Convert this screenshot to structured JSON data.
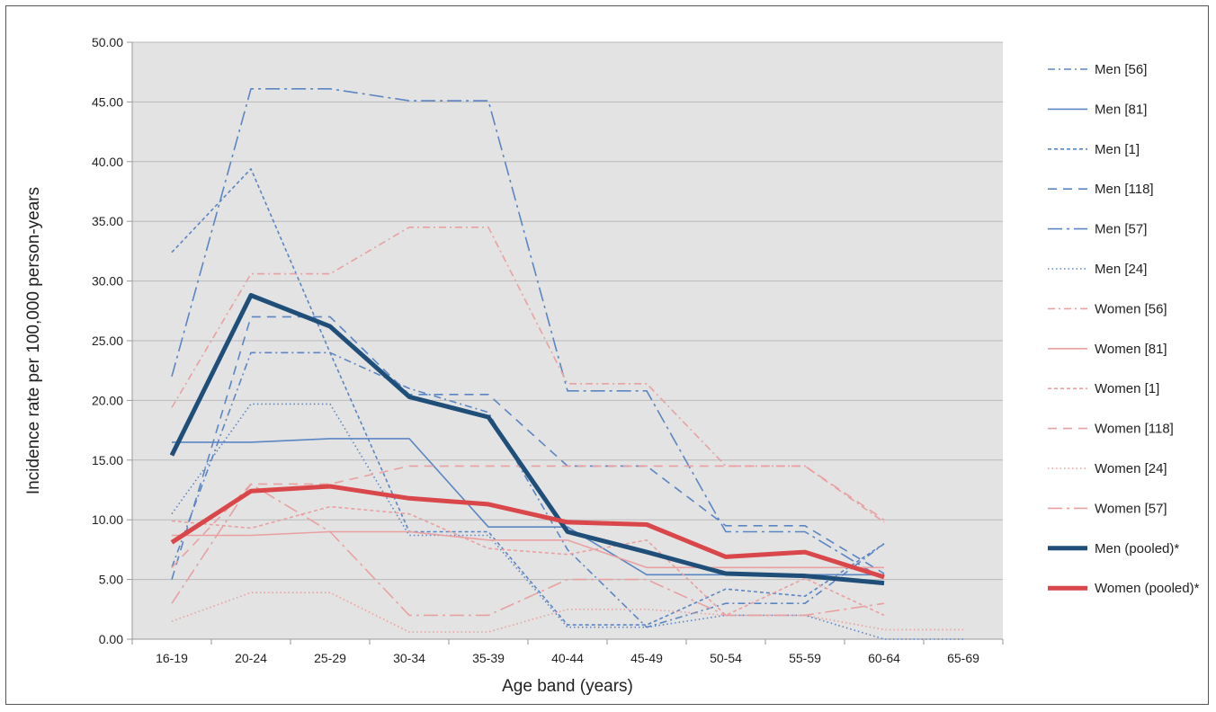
{
  "chart_data": {
    "type": "line",
    "title": "",
    "xlabel": "Age band (years)",
    "ylabel": "Incidence rate per 100,000 person-years",
    "ylim": [
      0,
      50
    ],
    "yticks": [
      "0.00",
      "5.00",
      "10.00",
      "15.00",
      "20.00",
      "25.00",
      "30.00",
      "35.00",
      "40.00",
      "45.00",
      "50.00"
    ],
    "categories": [
      "16-19",
      "20-24",
      "25-29",
      "30-34",
      "35-39",
      "40-44",
      "45-49",
      "50-54",
      "55-59",
      "60-64",
      "65-69"
    ],
    "grid": true,
    "legend_position": "right",
    "series": [
      {
        "name": "Men [56]",
        "color": "#5b86c4",
        "dash": "dashdot",
        "width": 1.6,
        "values": [
          6.0,
          24.0,
          24.0,
          21.0,
          19.0,
          7.5,
          1.0,
          3.0,
          3.0,
          8.0,
          null
        ]
      },
      {
        "name": "Men [81]",
        "color": "#5b86c4",
        "dash": "solid",
        "width": 1.6,
        "values": [
          16.5,
          16.5,
          16.8,
          16.8,
          9.4,
          9.4,
          5.4,
          5.4,
          5.4,
          5.4,
          null
        ]
      },
      {
        "name": "Men [1]",
        "color": "#5b86c4",
        "dash": "shortdash",
        "width": 1.6,
        "values": [
          32.4,
          39.4,
          24.0,
          9.0,
          9.0,
          1.2,
          1.2,
          4.2,
          3.6,
          8.0,
          null
        ]
      },
      {
        "name": "Men [118]",
        "color": "#5b86c4",
        "dash": "longdash",
        "width": 1.6,
        "values": [
          5.0,
          27.0,
          27.0,
          20.5,
          20.5,
          14.5,
          14.5,
          9.5,
          9.5,
          5.5,
          null
        ]
      },
      {
        "name": "Men [57]",
        "color": "#5b86c4",
        "dash": "longdashdot",
        "width": 1.6,
        "values": [
          22.0,
          46.1,
          46.1,
          45.1,
          45.1,
          20.8,
          20.8,
          9.0,
          9.0,
          5.0,
          null
        ]
      },
      {
        "name": "Men [24]",
        "color": "#5b86c4",
        "dash": "dot",
        "width": 1.6,
        "values": [
          10.5,
          19.7,
          19.7,
          8.7,
          8.7,
          1.0,
          1.0,
          2.0,
          2.0,
          0.0,
          0.0
        ]
      },
      {
        "name": "Women [56]",
        "color": "#eaa0a0",
        "dash": "dashdot",
        "width": 1.6,
        "values": [
          19.4,
          30.6,
          30.6,
          34.5,
          34.5,
          21.4,
          21.4,
          14.5,
          14.5,
          9.8,
          null
        ]
      },
      {
        "name": "Women [81]",
        "color": "#eaa0a0",
        "dash": "solid",
        "width": 1.6,
        "values": [
          8.7,
          8.7,
          9.0,
          9.0,
          8.3,
          8.3,
          6.0,
          6.0,
          6.0,
          6.0,
          null
        ]
      },
      {
        "name": "Women [1]",
        "color": "#eaa0a0",
        "dash": "shortdash",
        "width": 1.6,
        "values": [
          9.9,
          9.3,
          11.1,
          10.5,
          7.6,
          7.1,
          8.3,
          2.0,
          5.1,
          2.0,
          null
        ]
      },
      {
        "name": "Women [118]",
        "color": "#eaa0a0",
        "dash": "longdash",
        "width": 1.6,
        "values": [
          6.0,
          13.0,
          13.0,
          14.5,
          14.5,
          14.5,
          14.5,
          14.5,
          14.5,
          10.0,
          null
        ]
      },
      {
        "name": "Women [24]",
        "color": "#eaa0a0",
        "dash": "dot",
        "width": 1.6,
        "values": [
          1.5,
          3.9,
          3.9,
          0.6,
          0.6,
          2.5,
          2.5,
          2.0,
          2.0,
          0.8,
          0.8
        ]
      },
      {
        "name": "Women [57]",
        "color": "#eaa0a0",
        "dash": "longdashdot",
        "width": 1.6,
        "values": [
          3.0,
          13.0,
          9.0,
          2.0,
          2.0,
          5.0,
          5.0,
          2.0,
          2.0,
          3.0,
          null
        ]
      },
      {
        "name": "Men (pooled)*",
        "color": "#1f4e79",
        "dash": "solid",
        "width": 5,
        "values": [
          15.4,
          28.8,
          26.2,
          20.3,
          18.6,
          9.0,
          7.3,
          5.5,
          5.3,
          4.7,
          null
        ]
      },
      {
        "name": "Women (pooled)*",
        "color": "#d9474b",
        "dash": "solid",
        "width": 5,
        "values": [
          8.1,
          12.4,
          12.8,
          11.8,
          11.3,
          9.8,
          9.6,
          6.9,
          7.3,
          5.2,
          null
        ]
      }
    ]
  }
}
